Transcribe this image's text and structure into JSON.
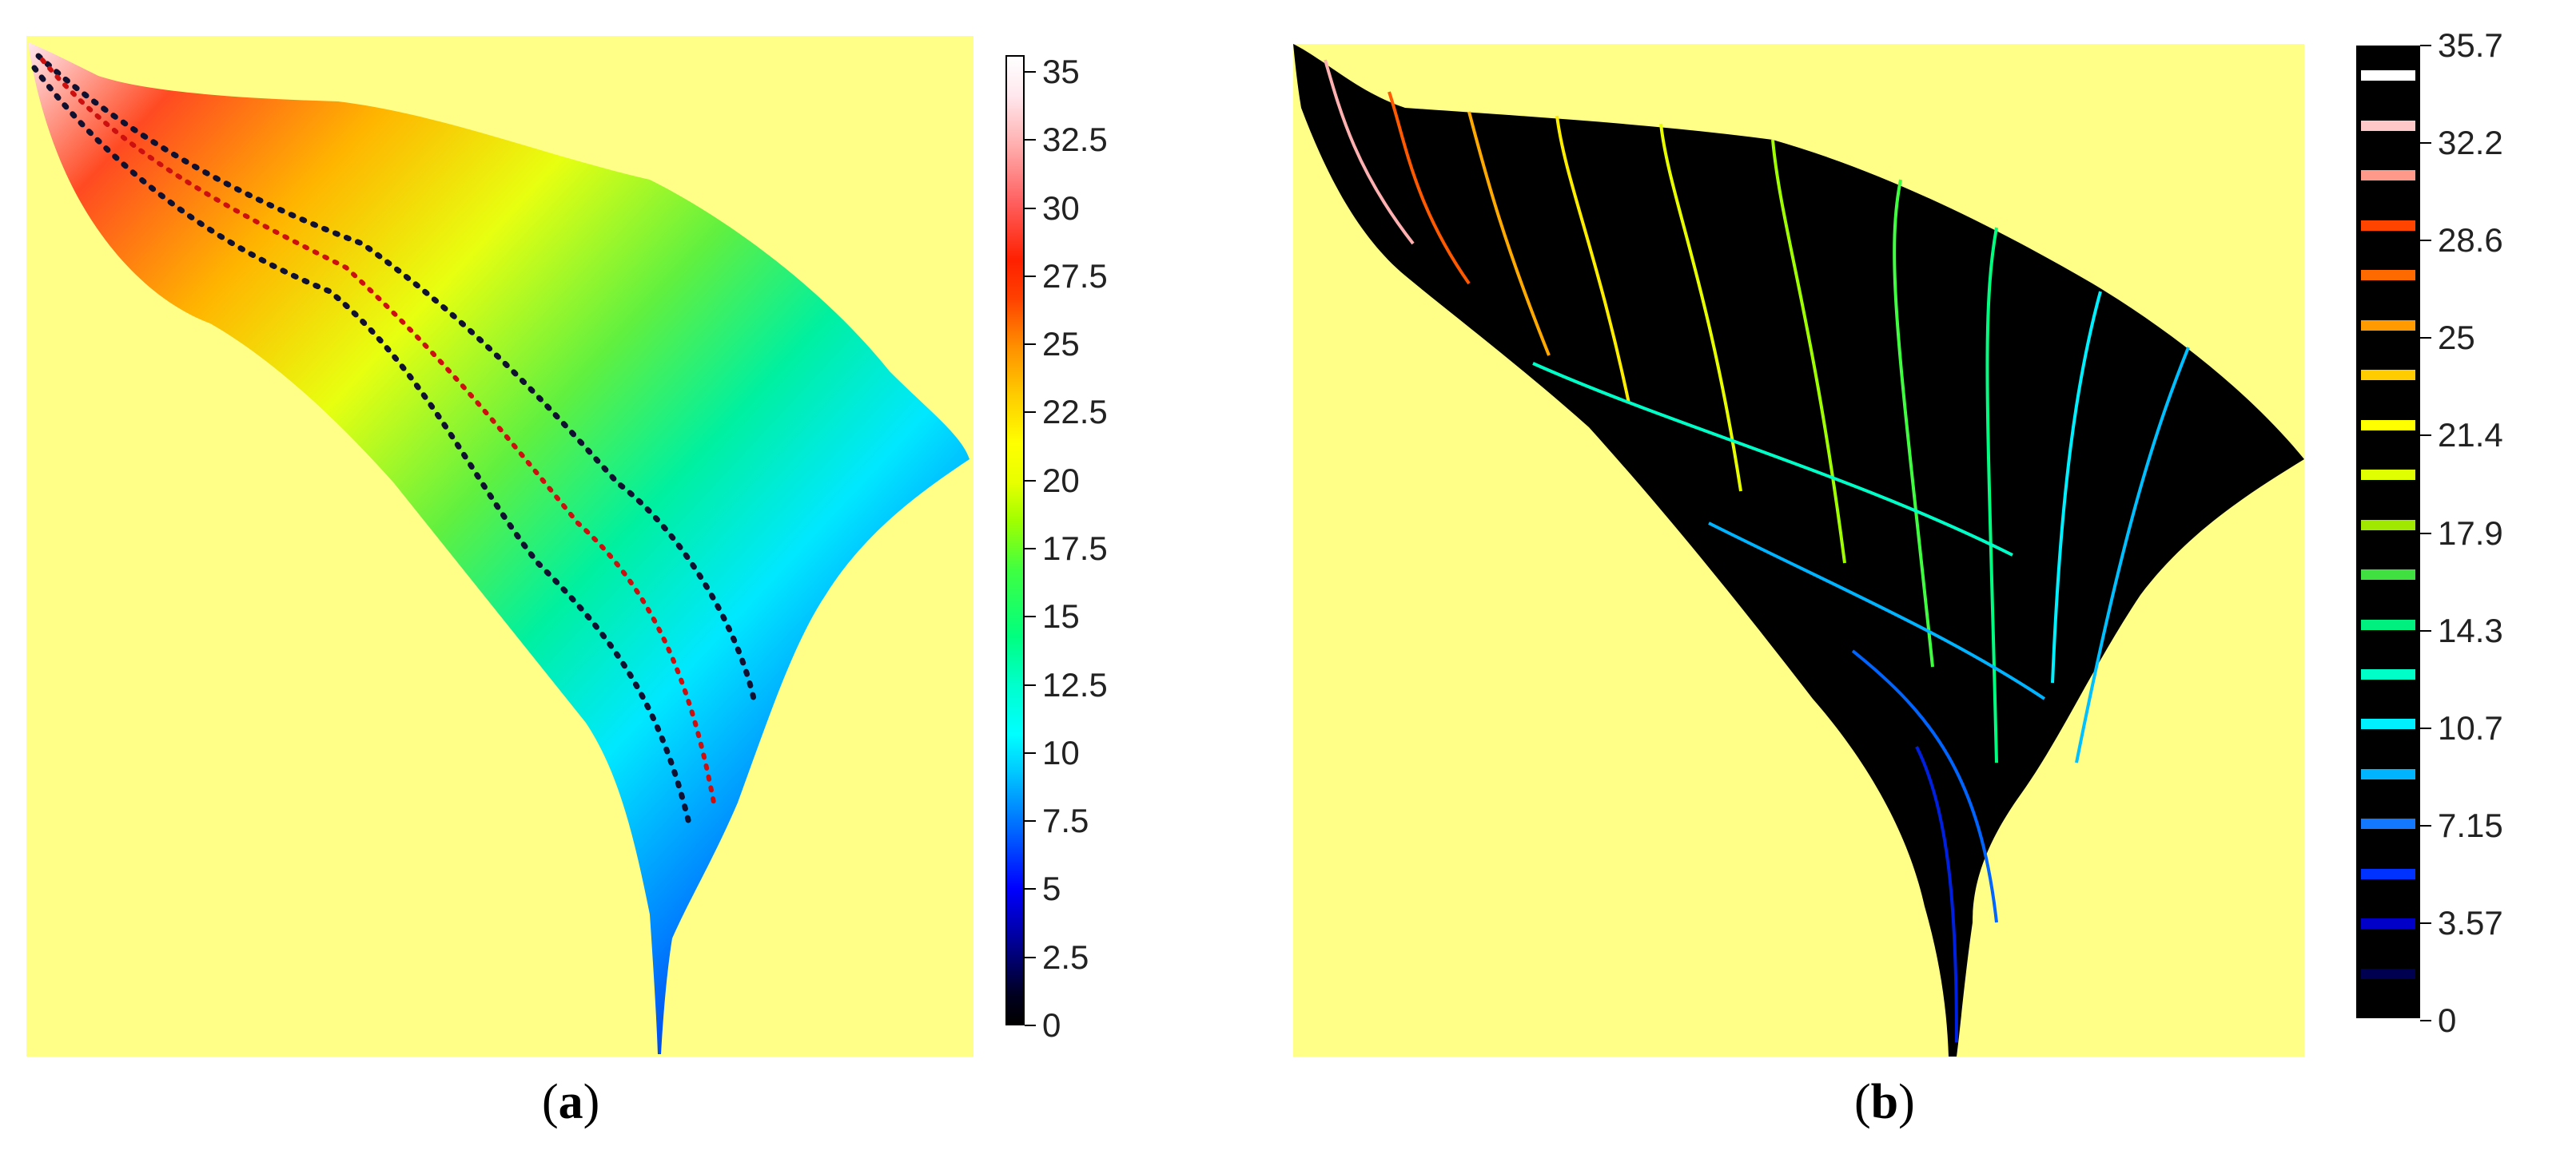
{
  "panels": [
    {
      "id": "a",
      "caption_open": "(",
      "caption_letter": "a",
      "caption_close": ")",
      "colorbar": {
        "min": 0,
        "max": 35,
        "ticks": [
          "35",
          "32.5",
          "30",
          "27.5",
          "25",
          "22.5",
          "20",
          "17.5",
          "15",
          "12.5",
          "10",
          "7.5",
          "5",
          "2.5",
          "0"
        ]
      },
      "overlay": {
        "outer_line_color": "#101030",
        "center_line_color": "#cc1010",
        "style": "dotted"
      }
    },
    {
      "id": "b",
      "caption_open": "(",
      "caption_letter": "b",
      "caption_close": ")",
      "colorbar": {
        "min": 0,
        "max": 35.7,
        "ticks": [
          "35.7",
          "32.2",
          "28.6",
          "25",
          "21.4",
          "17.9",
          "14.3",
          "10.7",
          "7.15",
          "3.57",
          "0"
        ],
        "band_colors": [
          "#000050",
          "#0000c8",
          "#0032ff",
          "#1478ff",
          "#00b4ff",
          "#00f0ff",
          "#00ffc8",
          "#00f080",
          "#40e040",
          "#a0e800",
          "#e0ff00",
          "#ffff00",
          "#ffcc00",
          "#ff9a00",
          "#ff6a00",
          "#ff4400",
          "#ff9a8a",
          "#ffc8c8",
          "#ffffff"
        ]
      }
    }
  ],
  "colors": {
    "background": "#ffff88"
  }
}
